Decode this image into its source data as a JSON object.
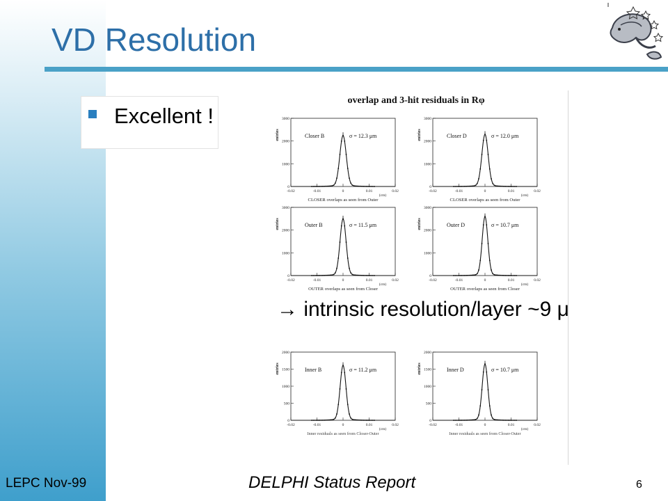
{
  "slide": {
    "title": "VD Resolution",
    "bullet": "Excellent !",
    "statement": "→ intrinsic resolution/layer ~9 μ",
    "footer_left": "LEPC Nov-99",
    "footer_center": "DELPHI Status Report",
    "page_number": "6"
  },
  "figure": {
    "title": "overlap and 3-hit residuals in Rφ",
    "ylabel": "entries",
    "xlabel": "(cm)",
    "xticks": [
      "-0.02",
      "-0.01",
      "0",
      "0.01",
      "0.02"
    ],
    "panels": [
      {
        "label": "Closer B",
        "sigma": "σ = 12.3 μm",
        "yticks": [
          "3000",
          "2000",
          "1000",
          "0"
        ],
        "ymax": 3000,
        "peak": 2200,
        "sigma_um": 12.3
      },
      {
        "label": "Closer D",
        "sigma": "σ = 12.0 μm",
        "yticks": [
          "3000",
          "2000",
          "1000",
          "0"
        ],
        "ymax": 3000,
        "peak": 2250,
        "sigma_um": 12.0
      },
      {
        "label": "Outer B",
        "sigma": "σ = 11.5 μm",
        "yticks": [
          "3000",
          "2000",
          "1000",
          "0"
        ],
        "ymax": 3000,
        "peak": 2450,
        "sigma_um": 11.5
      },
      {
        "label": "Outer D",
        "sigma": "σ = 10.7 μm",
        "yticks": [
          "3000",
          "2000",
          "1000",
          "0"
        ],
        "ymax": 3000,
        "peak": 2550,
        "sigma_um": 10.7
      },
      {
        "label": "Inner B",
        "sigma": "σ = 11.2 μm",
        "yticks": [
          "2000",
          "1500",
          "1000",
          "500",
          "0"
        ],
        "ymax": 2000,
        "peak": 1580,
        "sigma_um": 11.2
      },
      {
        "label": "Inner D",
        "sigma": "σ = 10.7 μm",
        "yticks": [
          "2000",
          "1500",
          "1000",
          "500",
          "0"
        ],
        "ymax": 2000,
        "peak": 1620,
        "sigma_um": 10.7
      }
    ],
    "captions": [
      "CLOSER overlaps as seen from Outer",
      "CLOSER overlaps as seen from Outer",
      "OUTER overlaps as seen from Closer",
      "OUTER overlaps as seen from Closer",
      "Inner residuals as seen from Closer-Outer",
      "Inner residuals as seen from Closer-Outer"
    ]
  }
}
